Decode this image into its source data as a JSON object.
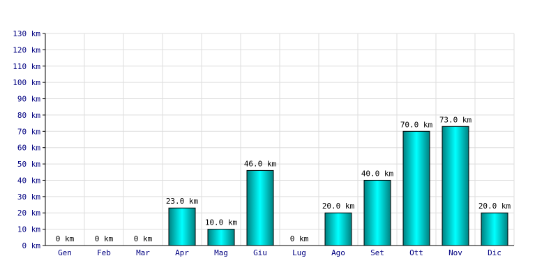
{
  "chart_data": {
    "type": "bar",
    "title": "",
    "xlabel": "",
    "ylabel": "",
    "unit": "km",
    "categories": [
      "Gen",
      "Feb",
      "Mar",
      "Apr",
      "Mag",
      "Giu",
      "Lug",
      "Ago",
      "Set",
      "Ott",
      "Nov",
      "Dic"
    ],
    "values": [
      0,
      0,
      0,
      23,
      10,
      46,
      0,
      20,
      40,
      70,
      73,
      20
    ],
    "data_labels": [
      "0 km",
      "0 km",
      "0 km",
      "23.0 km",
      "10.0 km",
      "46.0 km",
      "0 km",
      "20.0 km",
      "40.0 km",
      "70.0 km",
      "73.0 km",
      "20.0 km"
    ],
    "y_ticks": [
      "0 km",
      "10 km",
      "20 km",
      "30 km",
      "40 km",
      "50 km",
      "60 km",
      "70 km",
      "80 km",
      "90 km",
      "100 km",
      "110 km",
      "120 km",
      "130 km"
    ],
    "ylim": [
      0,
      130
    ],
    "grid": true,
    "legend": "none",
    "colors": {
      "bar_light": "#00ffff",
      "bar_dark": "#008080",
      "bar_outline": "#000000",
      "grid": "#dddddd",
      "axis": "#000000",
      "tick_text": "#000080"
    }
  }
}
